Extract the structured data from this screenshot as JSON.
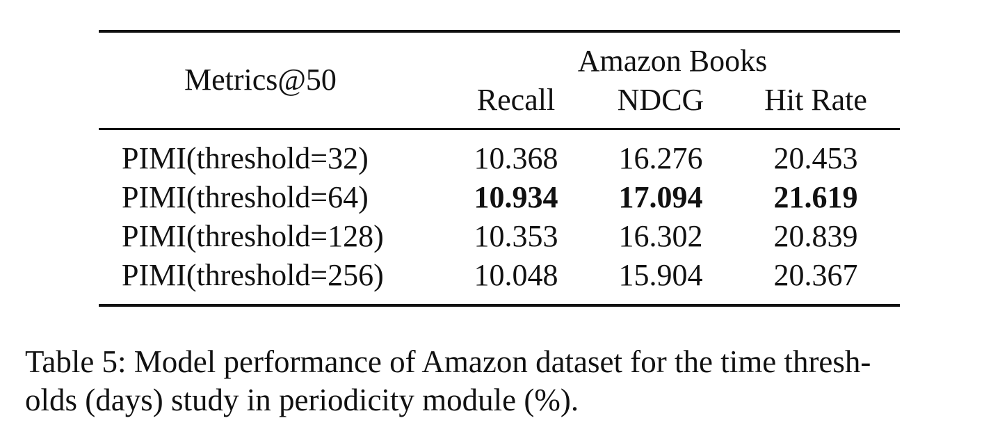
{
  "table": {
    "corner_header": "Metrics@50",
    "group_header": "Amazon Books",
    "columns": [
      "Recall",
      "NDCG",
      "Hit Rate"
    ],
    "rows": [
      {
        "label": "PIMI(threshold=32)",
        "values": [
          "10.368",
          "16.276",
          "20.453"
        ],
        "bold": false
      },
      {
        "label": "PIMI(threshold=64)",
        "values": [
          "10.934",
          "17.094",
          "21.619"
        ],
        "bold": true
      },
      {
        "label": "PIMI(threshold=128)",
        "values": [
          "10.353",
          "16.302",
          "20.839"
        ],
        "bold": false
      },
      {
        "label": "PIMI(threshold=256)",
        "values": [
          "10.048",
          "15.904",
          "20.367"
        ],
        "bold": false
      }
    ]
  },
  "caption": {
    "line1": "Table 5: Model performance of Amazon dataset for the time thresh-",
    "line2": "olds (days) study in periodicity module (%)."
  }
}
